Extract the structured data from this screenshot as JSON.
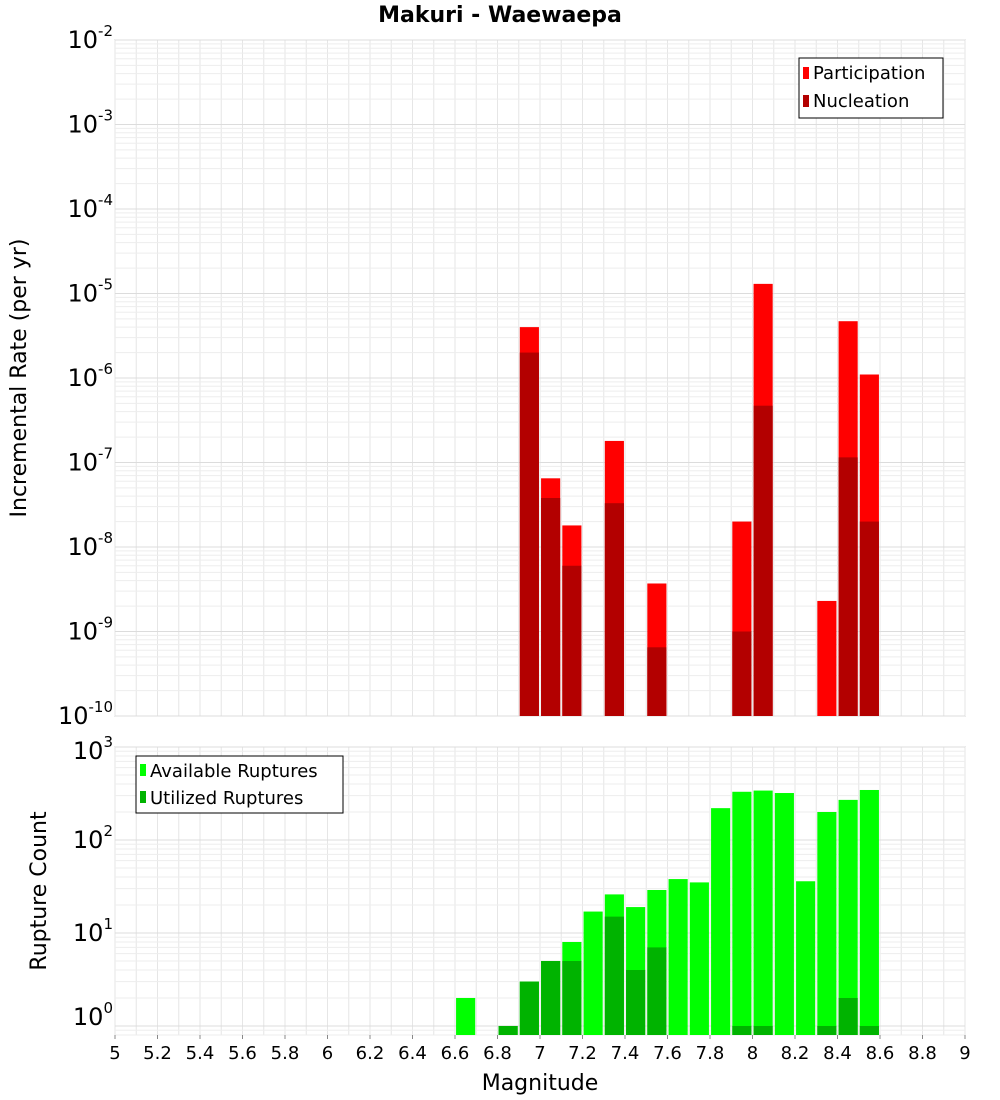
{
  "chart_data": [
    {
      "type": "bar",
      "title": "Makuri - Waewaepa",
      "ylabel": "Incremental Rate (per yr)",
      "yscale": "log",
      "ylim": [
        1e-10,
        0.01
      ],
      "ytick_exponents": [
        "-10",
        "-9",
        "-8",
        "-7",
        "-6",
        "-5",
        "-4",
        "-3",
        "-2"
      ],
      "grid": true,
      "legend_position": "top-right",
      "series": [
        {
          "name": "Participation",
          "color": "#ff0000",
          "x": [
            6.95,
            7.05,
            7.15,
            7.35,
            7.55,
            7.95,
            8.05,
            8.35,
            8.45,
            8.55
          ],
          "values": [
            4e-06,
            6.5e-08,
            1.8e-08,
            1.8e-07,
            3.7e-09,
            2e-08,
            1.3e-05,
            2.3e-09,
            4.7e-06,
            1.1e-06
          ]
        },
        {
          "name": "Nucleation",
          "color": "#b30000",
          "x": [
            6.95,
            7.05,
            7.15,
            7.35,
            7.55,
            7.95,
            8.05,
            8.45,
            8.55
          ],
          "values": [
            2e-06,
            3.8e-08,
            6e-09,
            3.3e-08,
            6.5e-10,
            1e-09,
            4.7e-07,
            1.15e-07,
            2e-08
          ]
        }
      ]
    },
    {
      "type": "bar",
      "ylabel": "Rupture Count",
      "xlabel": "Magnitude",
      "yscale": "log",
      "ylim": [
        0.8,
        1000
      ],
      "ytick_exponents": [
        "0",
        "1",
        "2",
        "3"
      ],
      "xlim": [
        5,
        9
      ],
      "xticks": [
        "5",
        "5.2",
        "5.4",
        "5.6",
        "5.8",
        "6",
        "6.2",
        "6.4",
        "6.6",
        "6.8",
        "7",
        "7.2",
        "7.4",
        "7.6",
        "7.8",
        "8",
        "8.2",
        "8.4",
        "8.6",
        "8.8",
        "9"
      ],
      "grid": true,
      "legend_position": "top-left",
      "series": [
        {
          "name": "Available Ruptures",
          "color": "#00ff00",
          "x": [
            6.65,
            6.85,
            6.95,
            7.05,
            7.15,
            7.25,
            7.35,
            7.45,
            7.55,
            7.65,
            7.75,
            7.85,
            7.95,
            8.05,
            8.15,
            8.25,
            8.35,
            8.45,
            8.55
          ],
          "values": [
            2,
            1,
            3,
            5,
            8,
            17,
            26,
            19,
            29,
            38,
            35,
            220,
            330,
            340,
            320,
            36,
            200,
            270,
            345
          ]
        },
        {
          "name": "Utilized Ruptures",
          "color": "#00b300",
          "x": [
            6.85,
            6.95,
            7.05,
            7.15,
            7.35,
            7.45,
            7.55,
            7.95,
            8.05,
            8.35,
            8.45,
            8.55
          ],
          "values": [
            1,
            3,
            5,
            5,
            15,
            4,
            7,
            1,
            1,
            1,
            2,
            1
          ]
        }
      ]
    }
  ]
}
